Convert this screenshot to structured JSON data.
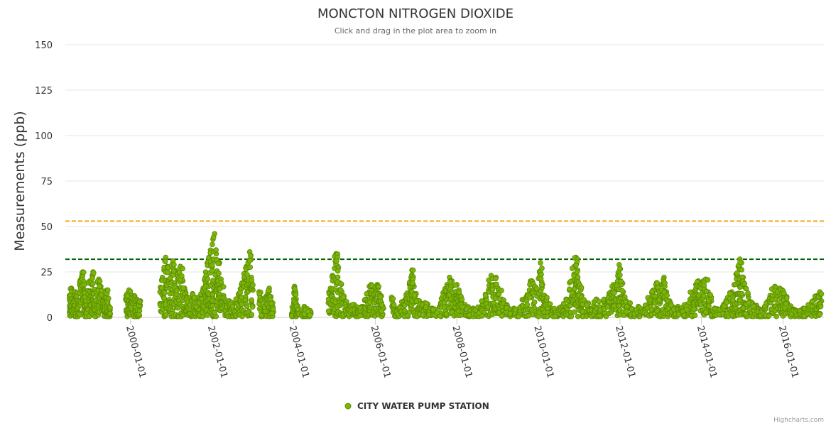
{
  "chart_data": {
    "type": "scatter",
    "title": "MONCTON NITROGEN DIOXIDE",
    "subtitle": "Click and drag in the plot area to zoom in",
    "ylabel": "Measurements (ppb)",
    "xlabel": "",
    "ylim": [
      0,
      150
    ],
    "yticks": [
      "0",
      "25",
      "50",
      "75",
      "100",
      "125",
      "150"
    ],
    "xlim_year": [
      1998.4,
      2017.0
    ],
    "xticks": [
      {
        "label": "2000-01-01",
        "year": 2000
      },
      {
        "label": "2002-01-01",
        "year": 2002
      },
      {
        "label": "2004-01-01",
        "year": 2004
      },
      {
        "label": "2006-01-01",
        "year": 2006
      },
      {
        "label": "2008-01-01",
        "year": 2008
      },
      {
        "label": "2010-01-01",
        "year": 2010
      },
      {
        "label": "2012-01-01",
        "year": 2012
      },
      {
        "label": "2014-01-01",
        "year": 2014
      },
      {
        "label": "2016-01-01",
        "year": 2016
      }
    ],
    "threshold_lines": [
      {
        "value": 53,
        "color": "#f5a623",
        "style": "dashed"
      },
      {
        "value": 32,
        "color": "#006400",
        "style": "dashed"
      }
    ],
    "series": [
      {
        "name": "CITY WATER PUMP STATION",
        "color": "#7cb50a",
        "points": [
          [
            1998.5,
            12
          ],
          [
            1998.52,
            5
          ],
          [
            1998.55,
            16
          ],
          [
            1998.58,
            3
          ],
          [
            1998.62,
            10
          ],
          [
            1998.65,
            14
          ],
          [
            1998.7,
            8
          ],
          [
            1998.75,
            18
          ],
          [
            1998.8,
            22
          ],
          [
            1998.83,
            25
          ],
          [
            1998.87,
            15
          ],
          [
            1998.9,
            7
          ],
          [
            1998.95,
            12
          ],
          [
            1999.0,
            20
          ],
          [
            1999.05,
            18
          ],
          [
            1999.08,
            25
          ],
          [
            1999.12,
            9
          ],
          [
            1999.18,
            14
          ],
          [
            1999.22,
            21
          ],
          [
            1999.27,
            17
          ],
          [
            1999.32,
            11
          ],
          [
            1999.36,
            4
          ],
          [
            1999.4,
            9
          ],
          [
            1999.43,
            15
          ],
          [
            1999.47,
            6
          ],
          [
            1999.5,
            2
          ],
          [
            1999.88,
            10
          ],
          [
            1999.92,
            13
          ],
          [
            1999.96,
            15
          ],
          [
            2000.0,
            8
          ],
          [
            2000.05,
            12
          ],
          [
            2000.1,
            6
          ],
          [
            2000.15,
            10
          ],
          [
            2000.2,
            3
          ],
          [
            2000.24,
            9
          ],
          [
            2000.72,
            14
          ],
          [
            2000.78,
            22
          ],
          [
            2000.82,
            26
          ],
          [
            2000.86,
            33
          ],
          [
            2000.9,
            28
          ],
          [
            2000.95,
            20
          ],
          [
            2001.0,
            24
          ],
          [
            2001.04,
            31
          ],
          [
            2001.08,
            18
          ],
          [
            2001.12,
            12
          ],
          [
            2001.18,
            25
          ],
          [
            2001.22,
            28
          ],
          [
            2001.28,
            20
          ],
          [
            2001.33,
            15
          ],
          [
            2001.38,
            10
          ],
          [
            2001.45,
            8
          ],
          [
            2001.52,
            13
          ],
          [
            2001.58,
            6
          ],
          [
            2001.65,
            11
          ],
          [
            2001.72,
            7
          ],
          [
            2001.78,
            16
          ],
          [
            2001.84,
            22
          ],
          [
            2001.88,
            30
          ],
          [
            2001.92,
            33
          ],
          [
            2001.96,
            37
          ],
          [
            2002.0,
            28
          ],
          [
            2002.02,
            43
          ],
          [
            2002.06,
            46
          ],
          [
            2002.1,
            35
          ],
          [
            2002.14,
            22
          ],
          [
            2002.18,
            30
          ],
          [
            2002.22,
            18
          ],
          [
            2002.28,
            12
          ],
          [
            2002.35,
            6
          ],
          [
            2002.42,
            9
          ],
          [
            2002.5,
            4
          ],
          [
            2002.58,
            8
          ],
          [
            2002.65,
            13
          ],
          [
            2002.72,
            18
          ],
          [
            2002.78,
            24
          ],
          [
            2002.84,
            28
          ],
          [
            2002.88,
            30
          ],
          [
            2002.92,
            36
          ],
          [
            2002.96,
            22
          ],
          [
            2003.0,
            15
          ],
          [
            2003.15,
            14
          ],
          [
            2003.2,
            10
          ],
          [
            2003.28,
            5
          ],
          [
            2003.34,
            12
          ],
          [
            2003.4,
            16
          ],
          [
            2003.45,
            8
          ],
          [
            2003.5,
            3
          ],
          [
            2003.95,
            2
          ],
          [
            2004.0,
            8
          ],
          [
            2004.02,
            17
          ],
          [
            2004.06,
            10
          ],
          [
            2004.1,
            5
          ],
          [
            2004.18,
            3
          ],
          [
            2004.26,
            6
          ],
          [
            2004.34,
            4
          ],
          [
            2004.42,
            2
          ],
          [
            2004.85,
            8
          ],
          [
            2004.9,
            16
          ],
          [
            2004.95,
            23
          ],
          [
            2005.0,
            27
          ],
          [
            2005.04,
            35
          ],
          [
            2005.08,
            28
          ],
          [
            2005.12,
            19
          ],
          [
            2005.18,
            14
          ],
          [
            2005.25,
            9
          ],
          [
            2005.32,
            5
          ],
          [
            2005.4,
            3
          ],
          [
            2005.48,
            7
          ],
          [
            2005.55,
            4
          ],
          [
            2005.62,
            2
          ],
          [
            2005.7,
            6
          ],
          [
            2005.78,
            10
          ],
          [
            2005.85,
            14
          ],
          [
            2005.9,
            18
          ],
          [
            2005.95,
            12
          ],
          [
            2006.0,
            16
          ],
          [
            2006.05,
            18
          ],
          [
            2006.1,
            13
          ],
          [
            2006.15,
            8
          ],
          [
            2006.2,
            5
          ],
          [
            2006.4,
            11
          ],
          [
            2006.45,
            7
          ],
          [
            2006.5,
            4
          ],
          [
            2006.55,
            3
          ],
          [
            2006.62,
            6
          ],
          [
            2006.7,
            9
          ],
          [
            2006.78,
            13
          ],
          [
            2006.84,
            18
          ],
          [
            2006.88,
            22
          ],
          [
            2006.9,
            26
          ],
          [
            2006.95,
            17
          ],
          [
            2007.0,
            13
          ],
          [
            2007.08,
            9
          ],
          [
            2007.15,
            6
          ],
          [
            2007.22,
            8
          ],
          [
            2007.3,
            4
          ],
          [
            2007.4,
            5
          ],
          [
            2007.5,
            3
          ],
          [
            2007.62,
            8
          ],
          [
            2007.7,
            14
          ],
          [
            2007.76,
            18
          ],
          [
            2007.82,
            22
          ],
          [
            2007.88,
            17
          ],
          [
            2007.95,
            12
          ],
          [
            2008.0,
            18
          ],
          [
            2008.05,
            15
          ],
          [
            2008.12,
            10
          ],
          [
            2008.2,
            7
          ],
          [
            2008.3,
            4
          ],
          [
            2008.4,
            5
          ],
          [
            2008.5,
            3
          ],
          [
            2008.6,
            6
          ],
          [
            2008.7,
            10
          ],
          [
            2008.78,
            15
          ],
          [
            2008.84,
            23
          ],
          [
            2008.9,
            18
          ],
          [
            2008.96,
            22
          ],
          [
            2009.02,
            15
          ],
          [
            2009.1,
            10
          ],
          [
            2009.2,
            7
          ],
          [
            2009.3,
            4
          ],
          [
            2009.4,
            5
          ],
          [
            2009.5,
            3
          ],
          [
            2009.6,
            6
          ],
          [
            2009.7,
            11
          ],
          [
            2009.78,
            15
          ],
          [
            2009.84,
            20
          ],
          [
            2009.9,
            17
          ],
          [
            2010.0,
            14
          ],
          [
            2010.05,
            30
          ],
          [
            2010.1,
            18
          ],
          [
            2010.15,
            12
          ],
          [
            2010.22,
            8
          ],
          [
            2010.3,
            5
          ],
          [
            2010.4,
            4
          ],
          [
            2010.5,
            3
          ],
          [
            2010.58,
            6
          ],
          [
            2010.68,
            10
          ],
          [
            2010.76,
            15
          ],
          [
            2010.82,
            20
          ],
          [
            2010.88,
            28
          ],
          [
            2010.92,
            33
          ],
          [
            2010.96,
            26
          ],
          [
            2011.0,
            18
          ],
          [
            2011.06,
            12
          ],
          [
            2011.14,
            8
          ],
          [
            2011.25,
            5
          ],
          [
            2011.35,
            4
          ],
          [
            2011.42,
            10
          ],
          [
            2011.5,
            3
          ],
          [
            2011.6,
            6
          ],
          [
            2011.7,
            10
          ],
          [
            2011.78,
            14
          ],
          [
            2011.84,
            18
          ],
          [
            2011.9,
            15
          ],
          [
            2011.95,
            23
          ],
          [
            2011.98,
            29
          ],
          [
            2012.02,
            20
          ],
          [
            2012.08,
            14
          ],
          [
            2012.15,
            9
          ],
          [
            2012.25,
            5
          ],
          [
            2012.35,
            4
          ],
          [
            2012.45,
            6
          ],
          [
            2012.55,
            3
          ],
          [
            2012.68,
            7
          ],
          [
            2012.76,
            11
          ],
          [
            2012.84,
            15
          ],
          [
            2012.9,
            19
          ],
          [
            2012.96,
            14
          ],
          [
            2013.02,
            18
          ],
          [
            2013.08,
            22
          ],
          [
            2013.14,
            14
          ],
          [
            2013.22,
            9
          ],
          [
            2013.32,
            5
          ],
          [
            2013.42,
            6
          ],
          [
            2013.52,
            4
          ],
          [
            2013.62,
            7
          ],
          [
            2013.72,
            10
          ],
          [
            2013.8,
            14
          ],
          [
            2013.86,
            18
          ],
          [
            2013.92,
            20
          ],
          [
            2013.98,
            16
          ],
          [
            2014.04,
            20
          ],
          [
            2014.1,
            21
          ],
          [
            2014.16,
            14
          ],
          [
            2014.24,
            9
          ],
          [
            2014.32,
            5
          ],
          [
            2014.42,
            4
          ],
          [
            2014.52,
            6
          ],
          [
            2014.6,
            8
          ],
          [
            2014.68,
            11
          ],
          [
            2014.74,
            14
          ],
          [
            2014.8,
            18
          ],
          [
            2014.86,
            24
          ],
          [
            2014.9,
            28
          ],
          [
            2014.94,
            32
          ],
          [
            2014.98,
            30
          ],
          [
            2015.02,
            22
          ],
          [
            2015.08,
            16
          ],
          [
            2015.15,
            11
          ],
          [
            2015.25,
            7
          ],
          [
            2015.35,
            5
          ],
          [
            2015.45,
            4
          ],
          [
            2015.55,
            6
          ],
          [
            2015.65,
            9
          ],
          [
            2015.72,
            12
          ],
          [
            2015.8,
            17
          ],
          [
            2015.86,
            14
          ],
          [
            2015.92,
            16
          ],
          [
            2015.98,
            15
          ],
          [
            2016.04,
            12
          ],
          [
            2016.1,
            8
          ],
          [
            2016.2,
            5
          ],
          [
            2016.3,
            4
          ],
          [
            2016.4,
            3
          ],
          [
            2016.5,
            5
          ],
          [
            2016.6,
            4
          ],
          [
            2016.7,
            7
          ],
          [
            2016.78,
            10
          ],
          [
            2016.84,
            12
          ],
          [
            2016.9,
            14
          ],
          [
            2016.94,
            9
          ]
        ]
      }
    ],
    "legend": [
      {
        "name": "CITY WATER PUMP STATION",
        "color": "#7cb50a"
      }
    ]
  },
  "credits": "Highcharts.com"
}
